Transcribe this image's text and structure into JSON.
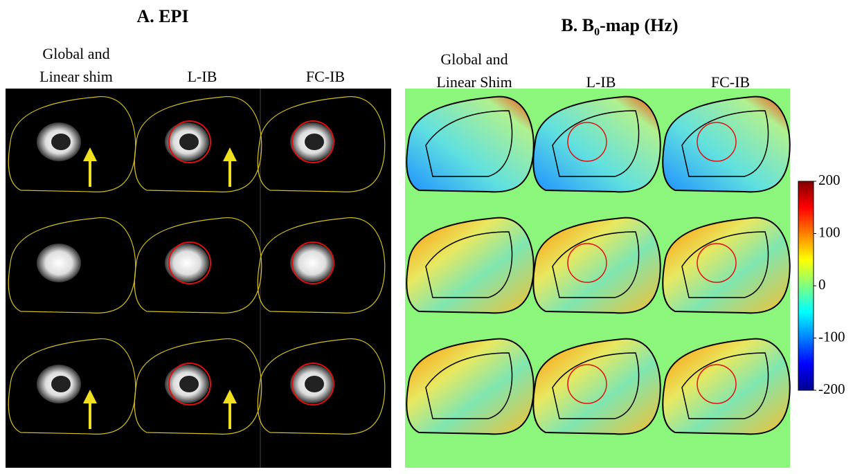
{
  "panels": [
    {
      "title": "A. EPI",
      "columns": [
        [
          "Global and",
          "Linear shim"
        ],
        [
          "L-IB"
        ],
        [
          "FC-IB"
        ]
      ]
    },
    {
      "title": {
        "prefix": "B. B",
        "subscript": "0",
        "suffix": "-map (Hz)"
      },
      "columns": [
        [
          "Global and",
          "Linear Shim"
        ],
        [
          "L-IB"
        ],
        [
          "FC-IB"
        ]
      ]
    }
  ],
  "colorbar": {
    "lim": [
      -200,
      200
    ],
    "ticks": [
      200,
      100,
      0,
      -100,
      -200
    ]
  }
}
